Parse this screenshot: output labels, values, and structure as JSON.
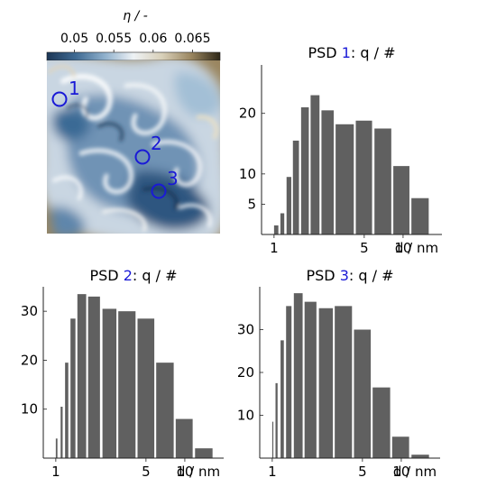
{
  "colorbar": {
    "label": "η / -",
    "ticks": [
      0.05,
      0.055,
      0.06,
      0.065
    ],
    "tick_labels": [
      "0.05",
      "0.055",
      "0.06",
      "0.065"
    ],
    "range": [
      0.0465,
      0.0685
    ],
    "colors": [
      "#1c3656",
      "#3f6a92",
      "#8fb0cc",
      "#eef2f5",
      "#d8cfb8",
      "#9a8660",
      "#2e2717"
    ]
  },
  "field_map": {
    "marker_color": "#1a1ad6",
    "markers": [
      {
        "label": "1"
      },
      {
        "label": "2"
      },
      {
        "label": "3"
      }
    ]
  },
  "chart_data": [
    {
      "type": "bar",
      "title_parts": [
        "PSD ",
        "1",
        ": q / #"
      ],
      "title_number_color": "#1a1ad6",
      "bar_color": "#606060",
      "xlabel": "d / nm",
      "x_scale": "log",
      "xlim": [
        0.8,
        20
      ],
      "ylim": [
        0,
        28
      ],
      "xticks": [
        1,
        5,
        10
      ],
      "yticks": [
        5,
        10,
        20
      ],
      "bins": [
        {
          "x0": 1.0,
          "x1": 1.08,
          "value": 1.5
        },
        {
          "x0": 1.12,
          "x1": 1.2,
          "value": 3.5
        },
        {
          "x0": 1.25,
          "x1": 1.36,
          "value": 9.5
        },
        {
          "x0": 1.4,
          "x1": 1.56,
          "value": 15.5
        },
        {
          "x0": 1.62,
          "x1": 1.86,
          "value": 21
        },
        {
          "x0": 1.92,
          "x1": 2.25,
          "value": 23
        },
        {
          "x0": 2.33,
          "x1": 2.9,
          "value": 20.5
        },
        {
          "x0": 3.0,
          "x1": 4.15,
          "value": 18.2
        },
        {
          "x0": 4.3,
          "x1": 5.75,
          "value": 18.8
        },
        {
          "x0": 6.0,
          "x1": 8.1,
          "value": 17.5
        },
        {
          "x0": 8.4,
          "x1": 11.2,
          "value": 11.3
        },
        {
          "x0": 11.6,
          "x1": 15.8,
          "value": 6
        }
      ]
    },
    {
      "type": "bar",
      "title_parts": [
        "PSD ",
        "2",
        ": q / #"
      ],
      "title_number_color": "#1a1ad6",
      "bar_color": "#606060",
      "xlabel": "d / nm",
      "x_scale": "log",
      "xlim": [
        0.8,
        20
      ],
      "ylim": [
        0,
        35
      ],
      "xticks": [
        1,
        5,
        10
      ],
      "yticks": [
        10,
        20,
        30
      ],
      "bins": [
        {
          "x0": 1.0,
          "x1": 1.03,
          "value": 4
        },
        {
          "x0": 1.09,
          "x1": 1.13,
          "value": 10.5
        },
        {
          "x0": 1.18,
          "x1": 1.25,
          "value": 19.5
        },
        {
          "x0": 1.3,
          "x1": 1.42,
          "value": 28.5
        },
        {
          "x0": 1.47,
          "x1": 1.72,
          "value": 33.5
        },
        {
          "x0": 1.78,
          "x1": 2.2,
          "value": 33
        },
        {
          "x0": 2.3,
          "x1": 2.95,
          "value": 30.5
        },
        {
          "x0": 3.05,
          "x1": 4.15,
          "value": 30
        },
        {
          "x0": 4.3,
          "x1": 5.8,
          "value": 28.5
        },
        {
          "x0": 6.0,
          "x1": 8.2,
          "value": 19.5
        },
        {
          "x0": 8.5,
          "x1": 11.5,
          "value": 8
        },
        {
          "x0": 12.0,
          "x1": 16.4,
          "value": 2
        }
      ]
    },
    {
      "type": "bar",
      "title_parts": [
        "PSD ",
        "3",
        ": q / #"
      ],
      "title_number_color": "#1a1ad6",
      "bar_color": "#606060",
      "xlabel": "d / nm",
      "x_scale": "log",
      "xlim": [
        0.8,
        20
      ],
      "ylim": [
        0,
        40
      ],
      "xticks": [
        1,
        5,
        10
      ],
      "yticks": [
        10,
        20,
        30
      ],
      "bins": [
        {
          "x0": 1.0,
          "x1": 1.02,
          "value": 8.5
        },
        {
          "x0": 1.06,
          "x1": 1.1,
          "value": 17.5
        },
        {
          "x0": 1.16,
          "x1": 1.23,
          "value": 27.5
        },
        {
          "x0": 1.28,
          "x1": 1.41,
          "value": 35.5
        },
        {
          "x0": 1.47,
          "x1": 1.72,
          "value": 38.5
        },
        {
          "x0": 1.78,
          "x1": 2.2,
          "value": 36.5
        },
        {
          "x0": 2.3,
          "x1": 2.95,
          "value": 35
        },
        {
          "x0": 3.05,
          "x1": 4.15,
          "value": 35.5
        },
        {
          "x0": 4.3,
          "x1": 5.8,
          "value": 30
        },
        {
          "x0": 6.0,
          "x1": 8.2,
          "value": 16.5
        },
        {
          "x0": 8.5,
          "x1": 11.5,
          "value": 5
        },
        {
          "x0": 12.0,
          "x1": 16.4,
          "value": 0.8
        }
      ]
    }
  ]
}
